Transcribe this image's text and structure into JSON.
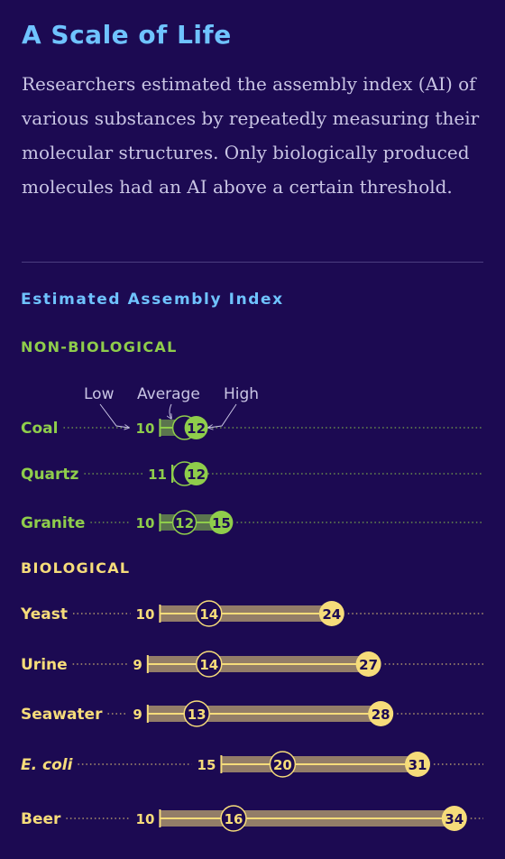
{
  "title": "A Scale of Life",
  "subtitle": "Researchers estimated the assembly index (AI) of various substances by repeatedly measuring their molecular structures. Only biologically produced molecules had an AI above a certain threshold.",
  "colors": {
    "background": "#1c0a52",
    "title": "#6fc3ff",
    "non_biological": "#8fcd4b",
    "biological": "#f6dc7a"
  },
  "chart_data": {
    "type": "range-dot",
    "title": "Estimated Assembly Index",
    "legend": {
      "low": "Low",
      "average": "Average",
      "high": "High"
    },
    "groups": [
      {
        "name": "Non-Biological",
        "items": [
          {
            "label": "Coal",
            "low": 10,
            "average": 12,
            "high": 12,
            "italic": false
          },
          {
            "label": "Quartz",
            "low": 11,
            "average": 12,
            "high": 12,
            "italic": false
          },
          {
            "label": "Granite",
            "low": 10,
            "average": 12,
            "high": 15,
            "italic": false
          }
        ]
      },
      {
        "name": "Biological",
        "items": [
          {
            "label": "Yeast",
            "low": 10,
            "average": 14,
            "high": 24,
            "italic": false
          },
          {
            "label": "Urine",
            "low": 9,
            "average": 14,
            "high": 27,
            "italic": false
          },
          {
            "label": "Seawater",
            "low": 9,
            "average": 13,
            "high": 28,
            "italic": false
          },
          {
            "label": "E. coli",
            "low": 15,
            "average": 20,
            "high": 31,
            "italic": true
          },
          {
            "label": "Beer",
            "low": 10,
            "average": 16,
            "high": 34,
            "italic": false
          }
        ]
      }
    ]
  }
}
